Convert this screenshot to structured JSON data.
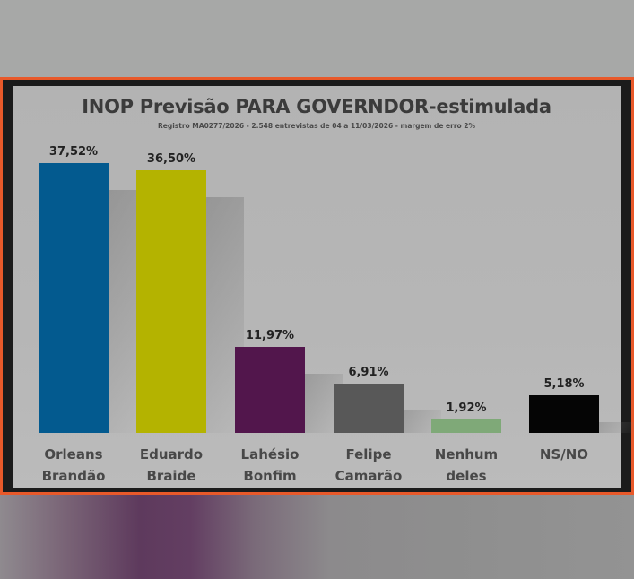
{
  "header": {
    "title": "INOP Previsão PARA GOVERNDOR-estimulada",
    "subtitle": "Registro MA0277/2026 - 2.548 entrevistas de 04 a 11/03/2026 - margem de erro 2%"
  },
  "bars": [
    {
      "label_line1": "Orleans",
      "label_line2": "Brandão",
      "value_label": "37,52%",
      "color": "#035a8f"
    },
    {
      "label_line1": "Eduardo",
      "label_line2": "Braide",
      "value_label": "36,50%",
      "color": "#b4b300"
    },
    {
      "label_line1": "Lahésio",
      "label_line2": "Bonfim",
      "value_label": "11,97%",
      "color": "#52164c"
    },
    {
      "label_line1": "Felipe",
      "label_line2": "Camarão",
      "value_label": "6,91%",
      "color": "#585858"
    },
    {
      "label_line1": "Nenhum",
      "label_line2": "deles",
      "value_label": "1,92%",
      "color": "#7fa978"
    },
    {
      "label_line1": "NS/NO",
      "label_line2": "",
      "value_label": "5,18%",
      "color": "#050505"
    }
  ],
  "chart_data": {
    "type": "bar",
    "title": "INOP Previsão PARA GOVERNDOR-estimulada",
    "subtitle": "Registro MA0277/2026 - 2.548 entrevistas de 04 a 11/03/2026 - margem de erro 2%",
    "categories": [
      "Orleans Brandão",
      "Eduardo Braide",
      "Lahésio Bonfim",
      "Felipe Camarão",
      "Nenhum deles",
      "NS/NO"
    ],
    "values": [
      37.52,
      36.5,
      11.97,
      6.91,
      1.92,
      5.18
    ],
    "value_labels": [
      "37,52%",
      "36,50%",
      "11,97%",
      "6,91%",
      "1,92%",
      "5,18%"
    ],
    "colors": [
      "#035a8f",
      "#b4b300",
      "#52164c",
      "#585858",
      "#7fa978",
      "#050505"
    ],
    "xlabel": "",
    "ylabel": "",
    "unit": "%",
    "grid": false,
    "legend": "none"
  }
}
